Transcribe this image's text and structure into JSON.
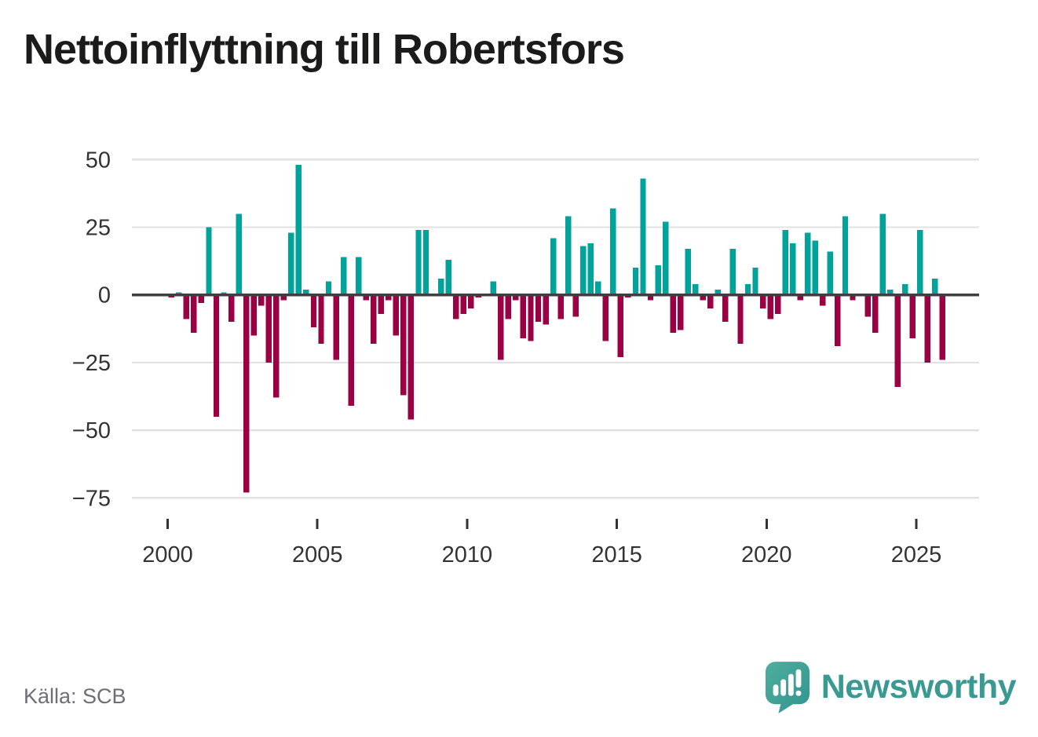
{
  "title": "Nettoinflyttning till Robertsfors",
  "source": "Källa: SCB",
  "brand": {
    "name": "Newsworthy",
    "logo_icon": "speech-bubble-with-bar-chart-and-exclamation"
  },
  "y_axis": {
    "labels": [
      "50",
      "25",
      "0",
      "−25",
      "−50",
      "−75"
    ],
    "values": [
      50,
      25,
      0,
      -25,
      -50,
      -75
    ]
  },
  "x_axis": {
    "labels": [
      "2000",
      "2005",
      "2010",
      "2015",
      "2020",
      "2025"
    ],
    "years": [
      2000,
      2005,
      2010,
      2015,
      2020,
      2025
    ]
  },
  "chart_data": {
    "type": "bar",
    "title": "Nettoinflyttning till Robertsfors",
    "unit": "persons (net migration per quarter)",
    "frequency": "quarterly",
    "start_year": 2000,
    "start_quarter": 1,
    "values": [
      -1,
      1,
      -9,
      -14,
      -3,
      25,
      -45,
      1,
      -10,
      30,
      -73,
      -15,
      -4,
      -25,
      -38,
      -2,
      23,
      48,
      2,
      -12,
      -18,
      5,
      -24,
      14,
      -41,
      14,
      -2,
      -18,
      -7,
      -2,
      -15,
      -37,
      -46,
      24,
      24,
      0,
      6,
      13,
      -9,
      -7,
      -5,
      -1,
      0,
      5,
      -24,
      -9,
      -2,
      -16,
      -17,
      -10,
      -11,
      21,
      -9,
      29,
      -8,
      18,
      19,
      5,
      -17,
      32,
      -23,
      -1,
      10,
      43,
      -2,
      11,
      27,
      -14,
      -13,
      17,
      4,
      -2,
      -5,
      2,
      -10,
      17,
      -18,
      4,
      10,
      -5,
      -9,
      -7,
      24,
      19,
      -2,
      23,
      20,
      -4,
      16,
      -19,
      29,
      -2,
      0,
      -8,
      -14,
      30,
      2,
      -34,
      4,
      -16,
      24,
      -25,
      6,
      -24
    ],
    "ylim": [
      -75,
      50
    ],
    "grid": "horizontal",
    "legend": "none",
    "colors": {
      "positive": "#00a39a",
      "negative": "#9b0043",
      "zero_line": "#3f3f3f",
      "gridline": "#e1e1e1",
      "axis_text": "#333333"
    }
  }
}
